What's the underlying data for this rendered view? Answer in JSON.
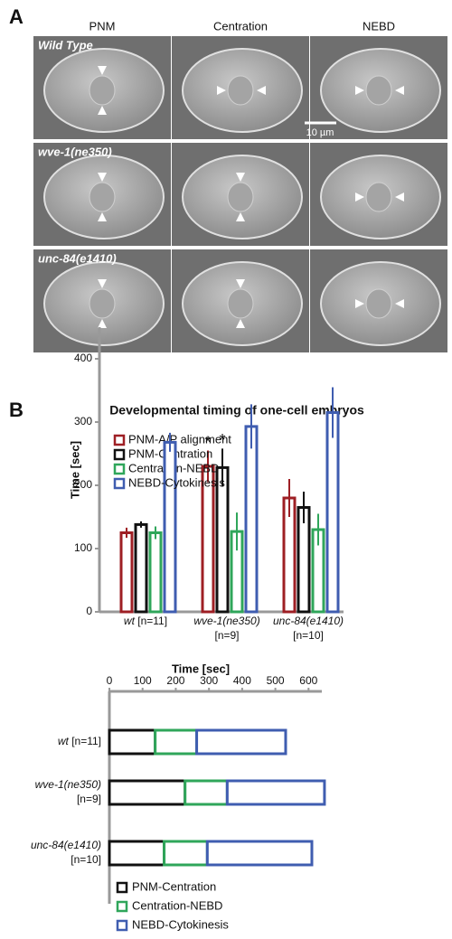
{
  "panel_a": {
    "label": "A",
    "columns": [
      "PNM",
      "Centration",
      "NEBD"
    ],
    "rows": [
      "Wild Type",
      "wve-1(ne350)",
      "unc-84(e1410)"
    ],
    "scale_bar": "10 µm"
  },
  "panel_b": {
    "label": "B"
  },
  "chart_data": [
    {
      "type": "bar",
      "title": "Developmental timing of one-cell embryos",
      "y_label": "Time [sec]",
      "categories": [
        "wt [n=11]",
        "wve-1(ne350) [n=9]",
        "unc-84(e1410) [n=10]"
      ],
      "series": [
        {
          "name": "PNM-A/P alignment",
          "color": "#9e1f24",
          "values": [
            125,
            230,
            180
          ],
          "errors": [
            8,
            25,
            30
          ]
        },
        {
          "name": "PNM-Centration",
          "color": "#111111",
          "values": [
            138,
            228,
            165
          ],
          "errors": [
            5,
            30,
            25
          ]
        },
        {
          "name": "Centration-NEBD",
          "color": "#2fa65a",
          "values": [
            125,
            127,
            130
          ],
          "errors": [
            10,
            30,
            25
          ]
        },
        {
          "name": "NEBD-Cytokinesis",
          "color": "#3f5db0",
          "values": [
            268,
            293,
            315
          ],
          "errors": [
            15,
            35,
            40
          ]
        }
      ],
      "annotations": [
        "*",
        "*"
      ],
      "ylim": [
        0,
        450
      ],
      "yticks": [
        0,
        100,
        200,
        300,
        400
      ],
      "legend": "top-left"
    },
    {
      "type": "stacked-hbar",
      "x_label": "Time [sec]",
      "categories": [
        "wt [n=11]",
        "wve-1(ne350) [n=9]",
        "unc-84(e1410) [n=10]"
      ],
      "series": [
        {
          "name": "PNM-Centration",
          "color": "#111111",
          "values": [
            138,
            228,
            165
          ]
        },
        {
          "name": "Centration-NEBD",
          "color": "#2fa65a",
          "values": [
            125,
            127,
            130
          ]
        },
        {
          "name": "NEBD-Cytokinesis",
          "color": "#3f5db0",
          "values": [
            268,
            293,
            315
          ]
        }
      ],
      "xlim": [
        0,
        640
      ],
      "xticks": [
        0,
        100,
        200,
        300,
        400,
        500,
        600
      ],
      "legend": "bottom"
    }
  ]
}
